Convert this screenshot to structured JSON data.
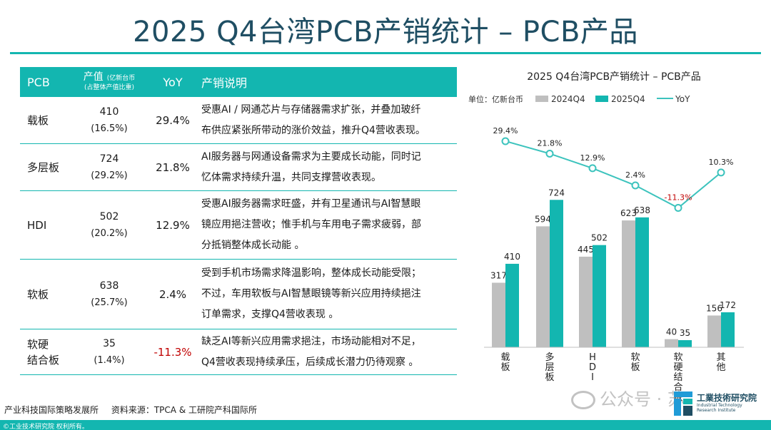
{
  "title": "2025 Q4台湾PCB产销统计 – PCB产品",
  "table": {
    "headers": {
      "pcb": "PCB",
      "value": "产值",
      "value_unit": "(亿新台币",
      "value_note": "(占整体产值比重)",
      "yoy": "YoY",
      "desc": "产销说明"
    },
    "rows": [
      {
        "name": "载板",
        "value": "410",
        "share": "(16.5%)",
        "yoy": "29.4%",
        "negative": false,
        "desc_lines": [
          "受惠AI / 网通芯片与存储器需求扩张，并叠加玻纤",
          "布供应紧张所带动的涨价效益，推升Q4营收表现。"
        ]
      },
      {
        "name": "多层板",
        "value": "724",
        "share": "(29.2%)",
        "yoy": "21.8%",
        "negative": false,
        "desc_lines": [
          "AI服务器与网通设备需求为主要成长动能，同时记",
          "忆体需求持续升温，共同支撑营收表现。"
        ]
      },
      {
        "name": "HDI",
        "value": "502",
        "share": "(20.2%)",
        "yoy": "12.9%",
        "negative": false,
        "desc_lines": [
          "受惠AI服务器需求旺盛，并有卫星通讯与AI智慧眼",
          "镜应用挹注营收；惟手机与车用电子需求疲弱，部",
          "分抵销整体成长动能 。"
        ]
      },
      {
        "name": "软板",
        "value": "638",
        "share": "(25.7%)",
        "yoy": "2.4%",
        "negative": false,
        "desc_lines": [
          "受到手机市场需求降温影响，整体成长动能受限；",
          "不过，车用软板与AI智慧眼镜等新兴应用持续挹注",
          "订单需求，支撑Q4营收表现 。"
        ]
      },
      {
        "name": "软硬\n结合板",
        "name_lines": [
          "软硬",
          "结合板"
        ],
        "value": "35",
        "share": "(1.4%)",
        "yoy": "-11.3%",
        "negative": true,
        "desc_lines": [
          "缺乏AI等新兴应用需求挹注，市场动能相对不足，",
          "Q4营收表现持续承压，后续成长潜力仍待观察 。"
        ]
      }
    ]
  },
  "chart_data": {
    "type": "bar",
    "title": "2025 Q4台湾PCB产销统计 – PCB产品",
    "unit_label": "单位：亿新台币",
    "categories": [
      "载板",
      "多层板",
      "HDI",
      "软板",
      "软硬结合板",
      "其他"
    ],
    "series": [
      {
        "name": "2024Q4",
        "values": [
          317,
          594,
          445,
          623,
          40,
          156
        ],
        "color": "#bfbfbf"
      },
      {
        "name": "2025Q4",
        "values": [
          410,
          724,
          502,
          638,
          35,
          172
        ],
        "color": "#13b6b0"
      }
    ],
    "line": {
      "name": "YoY",
      "values": [
        29.4,
        21.8,
        12.9,
        2.4,
        -11.3,
        10.3
      ],
      "labels": [
        "29.4%",
        "21.8%",
        "12.9%",
        "2.4%",
        "-11.3%",
        "10.3%"
      ],
      "color": "#3cc3bd",
      "negative_color": "#c00000"
    },
    "ylim": [
      0,
      760
    ],
    "yoy_lim": [
      -15,
      32
    ],
    "legend_position": "top",
    "grid": false
  },
  "footer": {
    "org": "产业科技国际策略发展所",
    "source": "资料来源：TPCA & 工研院产科国际所",
    "copyright": "©工业技术研究院  权利所有。",
    "logo_name": "工業技術研究院",
    "logo_en_1": "Industrial Technology",
    "logo_en_2": "Research Institute",
    "watermark": "公众号 · 苏"
  }
}
